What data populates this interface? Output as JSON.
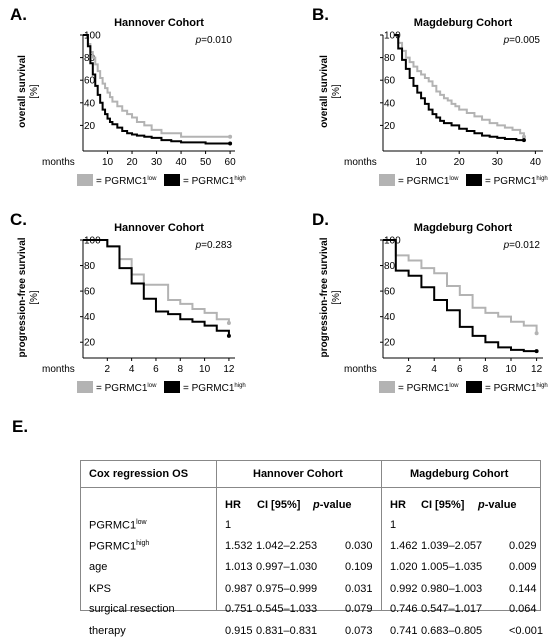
{
  "panels": [
    {
      "letter": "A.",
      "title": "Hannover Cohort",
      "p": "=0.010",
      "ylabel1": "overall survival",
      "ylabel2": "[%]"
    },
    {
      "letter": "B.",
      "title": "Magdeburg Cohort",
      "p": "=0.005",
      "ylabel1": "overall survival",
      "ylabel2": "[%]"
    },
    {
      "letter": "C.",
      "title": "Hannover Cohort",
      "p": "=0.283",
      "ylabel1": "progression-free survival",
      "ylabel2": "[%]"
    },
    {
      "letter": "D.",
      "title": "Magdeburg Cohort",
      "p": "=0.012",
      "ylabel1": "progression-free survival",
      "ylabel2": "[%]"
    }
  ],
  "p_letter": "p",
  "months_label": "months",
  "legend": {
    "eq": "= ",
    "base": "PGRMC1",
    "low_sup": "low",
    "high_sup": "high"
  },
  "colors": {
    "low": "#b3b3b3",
    "high": "#000000"
  },
  "chart_data": [
    {
      "type": "line",
      "title": "Hannover Cohort",
      "xlabel": "months",
      "ylabel": "overall survival [%]",
      "xlim": [
        0,
        62
      ],
      "ylim": [
        0,
        100
      ],
      "xticks": [
        10,
        20,
        30,
        40,
        50,
        60
      ],
      "yticks": [
        20,
        40,
        60,
        80,
        100
      ],
      "series": [
        {
          "name": "PGRMC1low",
          "x": [
            0,
            2,
            3,
            4,
            5,
            6,
            7,
            8,
            9,
            10,
            11,
            12,
            14,
            16,
            18,
            20,
            22,
            25,
            28,
            32,
            36,
            40,
            50,
            60
          ],
          "y": [
            100,
            92,
            85,
            80,
            74,
            68,
            62,
            57,
            53,
            49,
            45,
            41,
            37,
            33,
            30,
            27,
            23,
            20,
            16,
            13,
            13,
            10,
            10,
            10
          ]
        },
        {
          "name": "PGRMC1high",
          "x": [
            0,
            2,
            3,
            4,
            5,
            6,
            7,
            8,
            9,
            10,
            11,
            12,
            14,
            16,
            18,
            20,
            22,
            25,
            28,
            32,
            36,
            40,
            50,
            60
          ],
          "y": [
            100,
            90,
            75,
            65,
            55,
            47,
            40,
            34,
            30,
            26,
            23,
            21,
            18,
            15,
            13,
            12,
            11,
            10,
            9,
            7,
            6,
            5,
            4,
            4
          ]
        }
      ]
    },
    {
      "type": "line",
      "title": "Magdeburg Cohort",
      "xlabel": "months",
      "ylabel": "overall survival [%]",
      "xlim": [
        0,
        42
      ],
      "ylim": [
        0,
        100
      ],
      "xticks": [
        10,
        20,
        30,
        40
      ],
      "yticks": [
        20,
        40,
        60,
        80,
        100
      ],
      "series": [
        {
          "name": "PGRMC1low",
          "x": [
            3,
            4,
            5,
            6,
            7,
            8,
            9,
            10,
            11,
            12,
            13,
            14,
            15,
            16,
            17,
            18,
            19,
            20,
            22,
            24,
            26,
            28,
            30,
            32,
            34,
            36,
            37
          ],
          "y": [
            100,
            93,
            86,
            80,
            76,
            72,
            68,
            65,
            62,
            59,
            55,
            50,
            47,
            44,
            42,
            39,
            37,
            34,
            31,
            28,
            25,
            22,
            20,
            18,
            16,
            13,
            10
          ]
        },
        {
          "name": "PGRMC1high",
          "x": [
            3,
            4,
            5,
            6,
            7,
            8,
            9,
            10,
            11,
            12,
            13,
            14,
            15,
            16,
            18,
            20,
            22,
            24,
            26,
            28,
            30,
            32,
            35,
            37
          ],
          "y": [
            100,
            88,
            78,
            70,
            62,
            55,
            49,
            44,
            39,
            34,
            30,
            27,
            24,
            22,
            20,
            17,
            15,
            13,
            11,
            10,
            9,
            8,
            7,
            7
          ]
        }
      ]
    },
    {
      "type": "line",
      "title": "Hannover Cohort",
      "xlabel": "months",
      "ylabel": "progression-free survival [%]",
      "xlim": [
        0,
        12.5
      ],
      "ylim": [
        10,
        100
      ],
      "xticks": [
        2,
        4,
        6,
        8,
        10,
        12
      ],
      "yticks": [
        20,
        40,
        60,
        80,
        100
      ],
      "series": [
        {
          "name": "PGRMC1low",
          "x": [
            0,
            1,
            2,
            3,
            4,
            5,
            6,
            7,
            8,
            9,
            10,
            11,
            12
          ],
          "y": [
            100,
            100,
            95,
            85,
            73,
            65,
            65,
            53,
            50,
            46,
            43,
            38,
            35
          ]
        },
        {
          "name": "PGRMC1high",
          "x": [
            0,
            1,
            2,
            3,
            4,
            5,
            6,
            7,
            8,
            9,
            10,
            11,
            12
          ],
          "y": [
            100,
            100,
            95,
            78,
            66,
            54,
            44,
            42,
            38,
            36,
            33,
            29,
            25
          ]
        }
      ]
    },
    {
      "type": "line",
      "title": "Magdeburg Cohort",
      "xlabel": "months",
      "ylabel": "progression-free survival [%]",
      "xlim": [
        0,
        12.5
      ],
      "ylim": [
        10,
        100
      ],
      "xticks": [
        2,
        4,
        6,
        8,
        10,
        12
      ],
      "yticks": [
        20,
        40,
        60,
        80,
        100
      ],
      "series": [
        {
          "name": "PGRMC1low",
          "x": [
            0,
            1,
            2,
            3,
            4,
            5,
            6,
            7,
            8,
            9,
            10,
            11,
            12
          ],
          "y": [
            100,
            88,
            84,
            78,
            74,
            64,
            57,
            47,
            43,
            40,
            36,
            33,
            27
          ]
        },
        {
          "name": "PGRMC1high",
          "x": [
            0,
            1,
            2,
            3,
            4,
            5,
            6,
            7,
            8,
            9,
            10,
            11,
            12
          ],
          "y": [
            100,
            76,
            72,
            63,
            53,
            45,
            32,
            25,
            20,
            16,
            14,
            13,
            13
          ]
        }
      ]
    }
  ],
  "table": {
    "letter": "E.",
    "row_header": "Cox regression OS",
    "groups": [
      "Hannover Cohort",
      "Magdeburg Cohort"
    ],
    "subheaders": [
      "HR",
      "CI [95%]",
      "p",
      "-value"
    ],
    "rows": [
      {
        "label": "PGRMC1",
        "sup": "low",
        "h": [
          "1",
          "",
          ""
        ],
        "m": [
          "1",
          "",
          ""
        ]
      },
      {
        "label": "PGRMC1",
        "sup": "high",
        "h": [
          "1.532",
          "1.042–2.253",
          "0.030"
        ],
        "m": [
          "1.462",
          "1.039–2.057",
          "0.029"
        ]
      },
      {
        "label": "age",
        "sup": "",
        "h": [
          "1.013",
          "0.997–1.030",
          "0.109"
        ],
        "m": [
          "1.020",
          "1.005–1.035",
          "0.009"
        ]
      },
      {
        "label": "KPS",
        "sup": "",
        "h": [
          "0.987",
          "0.975–0.999",
          "0.031"
        ],
        "m": [
          "0.992",
          "0.980–1.003",
          "0.144"
        ]
      },
      {
        "label": "surgical resection",
        "sup": "",
        "h": [
          "0.751",
          "0.545–1.033",
          "0.079"
        ],
        "m": [
          "0.746",
          "0.547–1.017",
          "0.064"
        ]
      },
      {
        "label": "therapy",
        "sup": "",
        "h": [
          "0.915",
          "0.831–0.831",
          "0.073"
        ],
        "m": [
          "0.741",
          "0.683–0.805",
          "<0.001"
        ]
      }
    ]
  }
}
